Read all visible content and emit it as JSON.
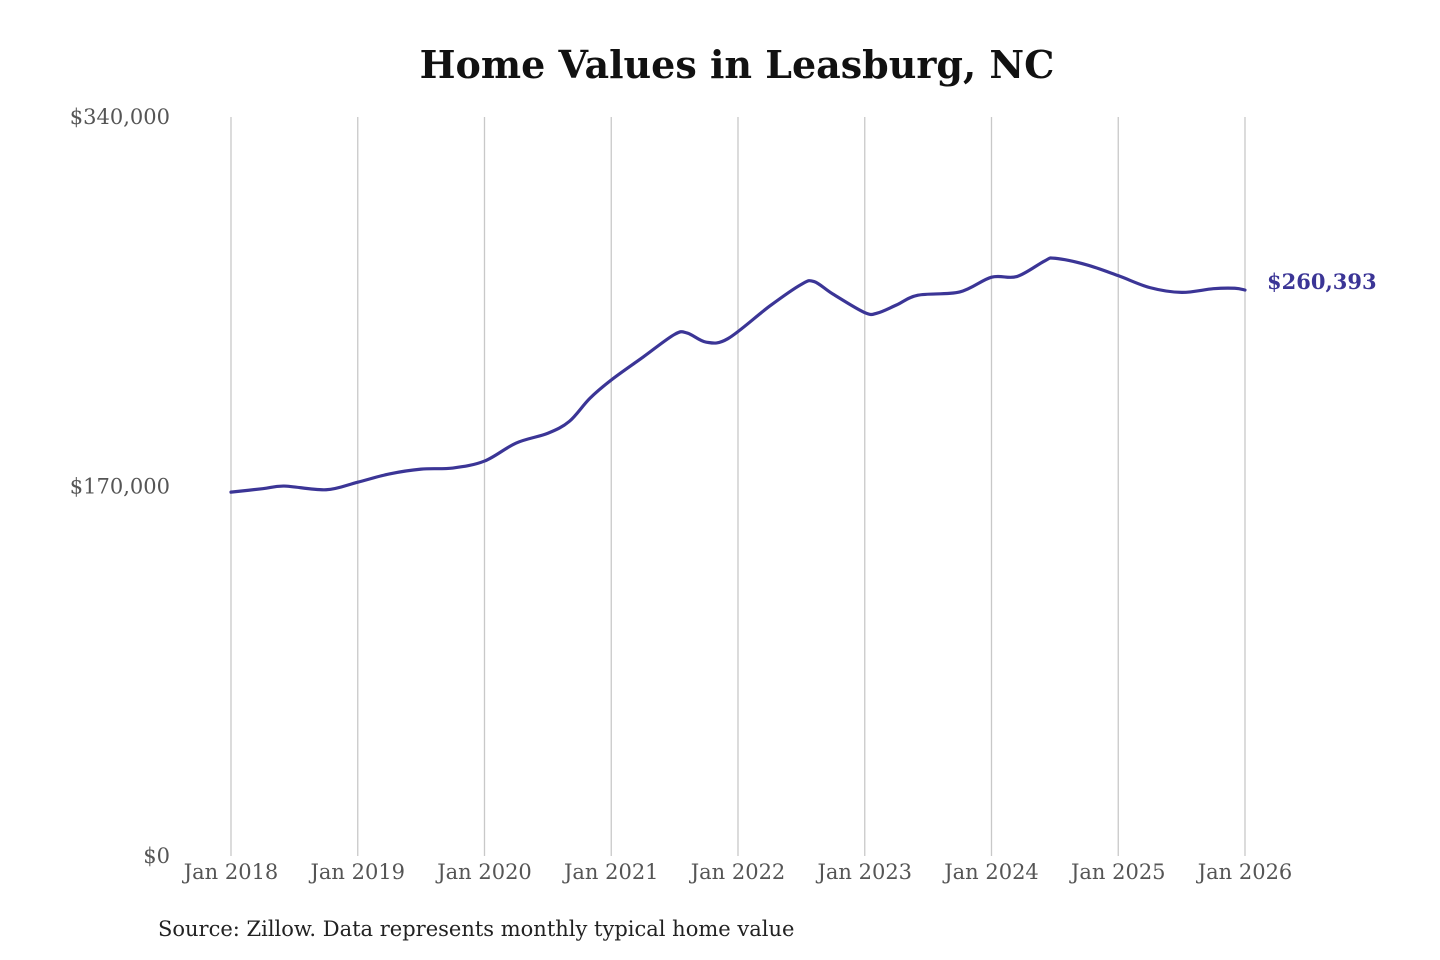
{
  "chart_data": {
    "type": "line",
    "title": "Home Values in Leasburg, NC",
    "xlabel": "",
    "ylabel": "",
    "ylim": [
      0,
      340000
    ],
    "xlim": [
      2018,
      2026
    ],
    "yticks": [
      {
        "value": 0,
        "label": "$0"
      },
      {
        "value": 170000,
        "label": "$170,000"
      },
      {
        "value": 340000,
        "label": "$340,000"
      }
    ],
    "xticks": [
      {
        "value": 2018,
        "label": "Jan 2018"
      },
      {
        "value": 2019,
        "label": "Jan 2019"
      },
      {
        "value": 2020,
        "label": "Jan 2020"
      },
      {
        "value": 2021,
        "label": "Jan 2021"
      },
      {
        "value": 2022,
        "label": "Jan 2022"
      },
      {
        "value": 2023,
        "label": "Jan 2023"
      },
      {
        "value": 2024,
        "label": "Jan 2024"
      },
      {
        "value": 2025,
        "label": "Jan 2025"
      },
      {
        "value": 2026,
        "label": "Jan 2026"
      }
    ],
    "grid": "vertical",
    "series": [
      {
        "name": "Typical home value",
        "color": "#3b3596",
        "x": [
          2018.0,
          2018.25,
          2018.42,
          2018.75,
          2019.0,
          2019.25,
          2019.5,
          2019.75,
          2020.0,
          2020.25,
          2020.5,
          2020.67,
          2020.83,
          2021.0,
          2021.25,
          2021.5,
          2021.6,
          2021.75,
          2021.92,
          2022.25,
          2022.5,
          2022.6,
          2022.75,
          2023.0,
          2023.1,
          2023.25,
          2023.42,
          2023.75,
          2024.0,
          2024.2,
          2024.42,
          2024.5,
          2024.75,
          2025.0,
          2025.25,
          2025.5,
          2025.75,
          2025.92,
          2026.0
        ],
        "values": [
          167400,
          169000,
          170200,
          168500,
          172000,
          175800,
          178000,
          178500,
          181700,
          190000,
          194500,
          200000,
          210500,
          219000,
          229500,
          240000,
          240600,
          236400,
          238000,
          253000,
          263000,
          264300,
          258500,
          250000,
          249800,
          253500,
          258000,
          259500,
          266300,
          266600,
          273800,
          275000,
          272000,
          267000,
          261500,
          259300,
          261000,
          261200,
          260393
        ]
      }
    ],
    "annotations": [
      {
        "label": "$260,393",
        "x": 2026,
        "value": 260393
      }
    ]
  },
  "source": "Source: Zillow. Data represents monthly typical home value"
}
